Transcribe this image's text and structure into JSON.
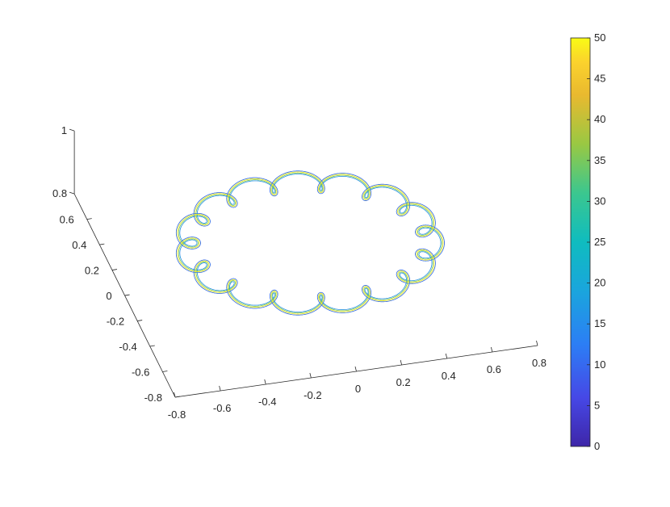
{
  "chart_data": {
    "type": "line3d",
    "title": "",
    "xlabel": "",
    "ylabel": "",
    "zlabel": "",
    "xlim": [
      -0.8,
      0.8
    ],
    "ylim": [
      -0.8,
      0.8
    ],
    "zlim": [
      0.8,
      1
    ],
    "x_ticks": [
      "-0.8",
      "-0.6",
      "-0.4",
      "-0.2",
      "0",
      "0.2",
      "0.4",
      "0.6",
      "0.8"
    ],
    "y_ticks": [
      "-0.8",
      "-0.6",
      "-0.4",
      "-0.2",
      "0",
      "0.2",
      "0.4",
      "0.6"
    ],
    "z_ticks": [
      "0.8",
      "1"
    ],
    "grid": false,
    "curve": {
      "description_type": "epicycloid-like loops on a ring",
      "ring_radius": 0.65,
      "loop_radius": 0.07,
      "loops_per_turn": 16,
      "num_traces": 8,
      "z": 1
    },
    "colormap": {
      "name": "parula",
      "range": [
        0,
        50
      ],
      "ticks": [
        "0",
        "5",
        "10",
        "15",
        "20",
        "25",
        "30",
        "35",
        "40",
        "45",
        "50"
      ],
      "colors": [
        "#3e26a8",
        "#4a44e9",
        "#2e7ff4",
        "#1aa8dc",
        "#14bfc0",
        "#47c98a",
        "#9dc93f",
        "#e3b730",
        "#fcc93b",
        "#f9fb15"
      ]
    }
  }
}
